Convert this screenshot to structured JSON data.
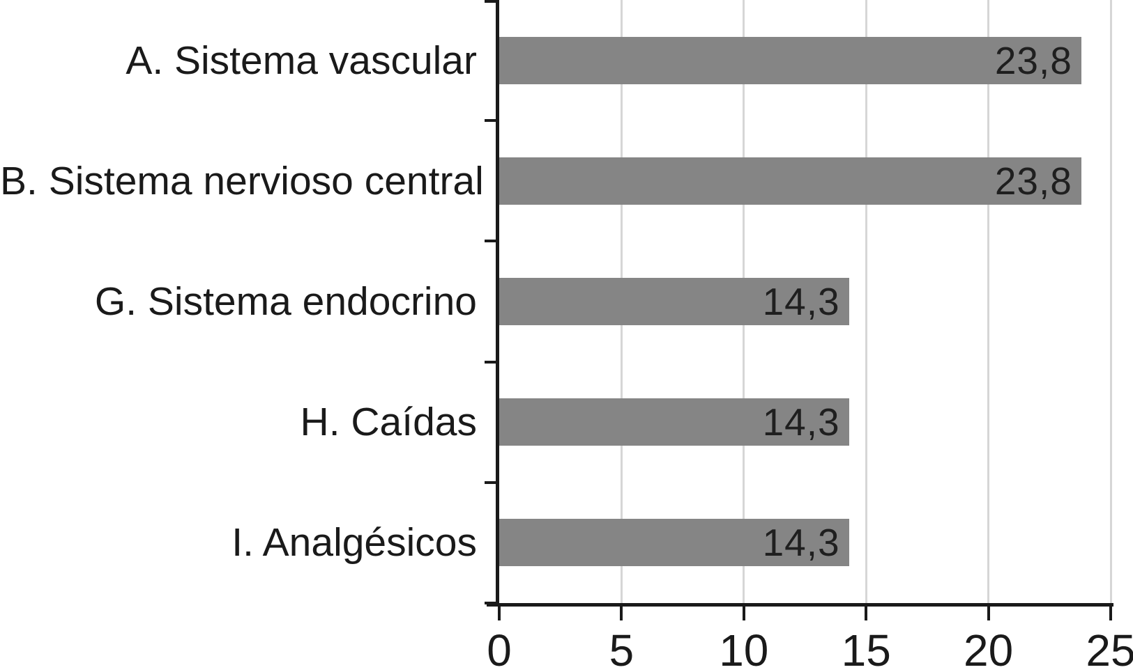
{
  "chart_data": {
    "type": "bar",
    "orientation": "horizontal",
    "title": "",
    "xlabel": "",
    "ylabel": "",
    "categories": [
      "A. Sistema vascular",
      "B. Sistema nervioso central",
      "G. Sistema endocrino",
      "H. Caídas",
      "I. Analgésicos"
    ],
    "values": [
      23.8,
      23.8,
      14.3,
      14.3,
      14.3
    ],
    "value_labels": [
      "23,8",
      "23,8",
      "14,3",
      "14,3",
      "14,3"
    ],
    "xlim": [
      0,
      25
    ],
    "x_ticks": [
      0,
      5,
      10,
      15,
      20,
      25
    ],
    "x_tick_labels": [
      "0",
      "5",
      "10",
      "15",
      "20",
      "25"
    ],
    "grid": "vertical-gridlines-on",
    "legend_position": "none"
  },
  "colors": {
    "background": "#ffffff",
    "bar": "#858585",
    "axis": "#1a1a1a",
    "gridline": "#d6d6d6",
    "value_text": "#1f1f1f",
    "label_text": "#1a1a1a"
  }
}
